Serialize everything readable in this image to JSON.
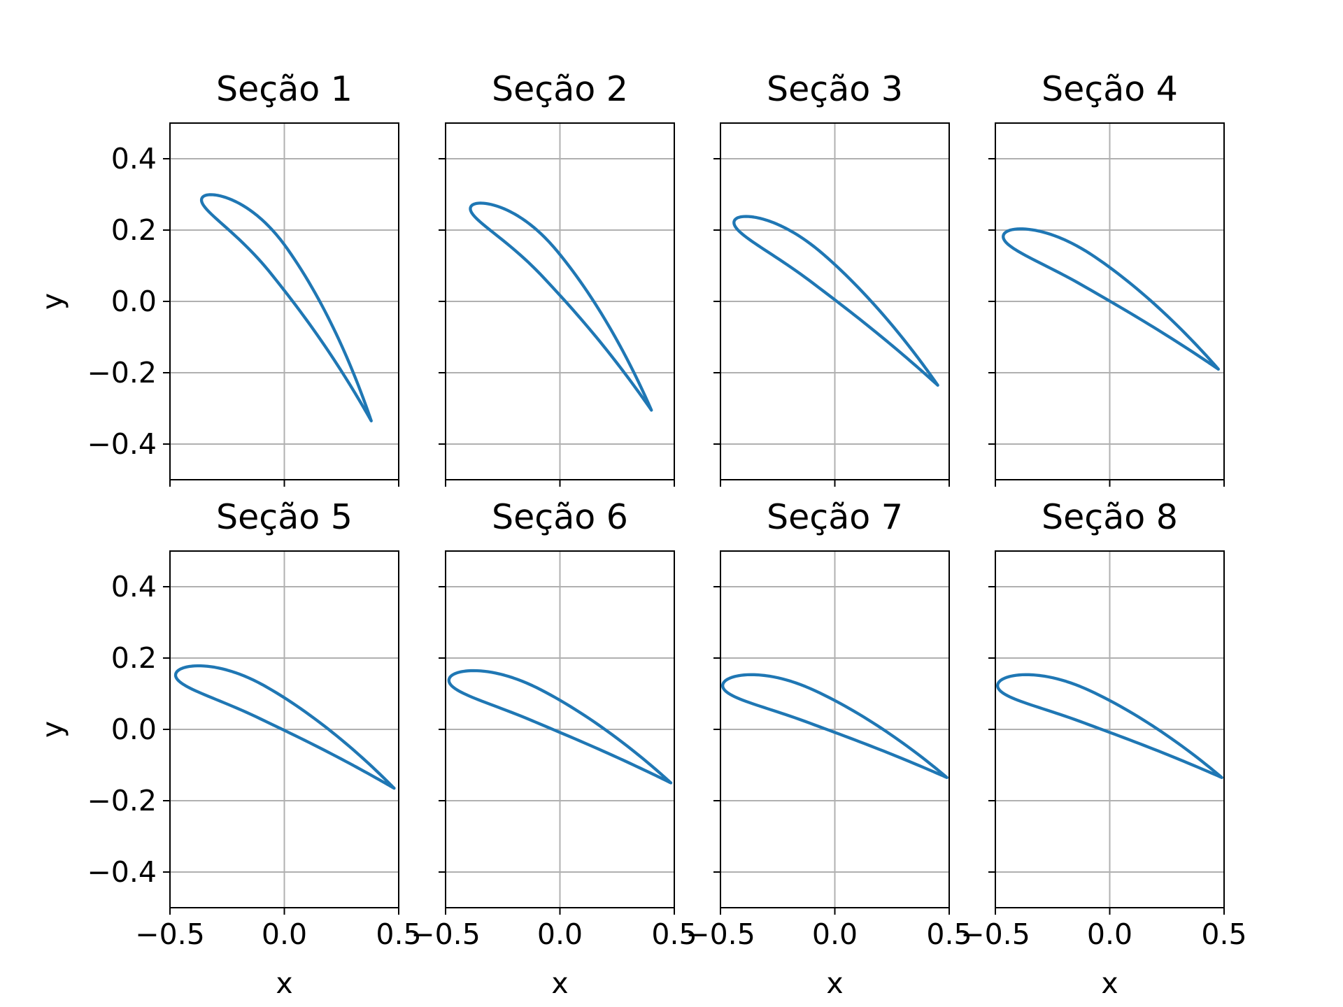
{
  "chart_data": {
    "type": "line",
    "layout": "2x4 subplots, shared y-axis per row, x tick labels on bottom row only",
    "series_color": "#1f77b4",
    "grid": true,
    "xlim": [
      -0.5,
      0.5
    ],
    "ylim": [
      -0.5,
      0.5
    ],
    "x_ticks": [
      -0.5,
      0.0,
      0.5
    ],
    "x_tick_labels": [
      "−0.5",
      "0.0",
      "0.5"
    ],
    "y_ticks": [
      -0.4,
      -0.2,
      0.0,
      0.2,
      0.4
    ],
    "y_tick_labels": [
      "−0.4",
      "−0.2",
      "0.0",
      "0.2",
      "0.4"
    ],
    "xlabel": "x",
    "ylabel": "y",
    "panels": [
      {
        "title": "Seção 1",
        "le": [
          -0.36,
          0.29
        ],
        "te": [
          0.38,
          -0.335
        ],
        "thickness": 0.105,
        "camber": 0.085
      },
      {
        "title": "Seção 2",
        "le": [
          -0.39,
          0.265
        ],
        "te": [
          0.4,
          -0.305
        ],
        "thickness": 0.1,
        "camber": 0.075
      },
      {
        "title": "Seção 3",
        "le": [
          -0.44,
          0.225
        ],
        "te": [
          0.45,
          -0.235
        ],
        "thickness": 0.095,
        "camber": 0.05
      },
      {
        "title": "Seção 4",
        "le": [
          -0.465,
          0.185
        ],
        "te": [
          0.475,
          -0.19
        ],
        "thickness": 0.095,
        "camber": 0.045
      },
      {
        "title": "Seção 5",
        "le": [
          -0.475,
          0.155
        ],
        "te": [
          0.48,
          -0.165
        ],
        "thickness": 0.095,
        "camber": 0.045
      },
      {
        "title": "Seção 6",
        "le": [
          -0.485,
          0.14
        ],
        "te": [
          0.485,
          -0.15
        ],
        "thickness": 0.095,
        "camber": 0.04
      },
      {
        "title": "Seção 7",
        "le": [
          -0.49,
          0.125
        ],
        "te": [
          0.49,
          -0.135
        ],
        "thickness": 0.095,
        "camber": 0.04
      },
      {
        "title": "Seção 8",
        "le": [
          -0.49,
          0.125
        ],
        "te": [
          0.49,
          -0.135
        ],
        "thickness": 0.095,
        "camber": 0.04
      }
    ]
  }
}
